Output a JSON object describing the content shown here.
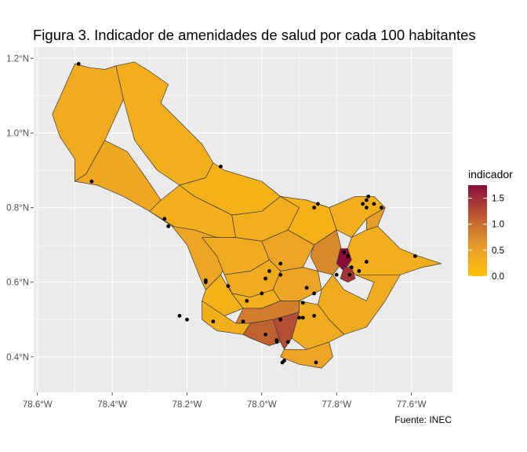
{
  "title": "Figura 3. Indicador de amenidades de salud por cada 100 habitantes",
  "caption": "Fuente: INEC",
  "colors": {
    "panel": "#EBEBEB",
    "grid": "#FFFFFF",
    "low": "#FFC107",
    "mid": "#E9A02A",
    "high": "#8A0C3D",
    "border": "#3a3a3a",
    "point": "#000000"
  },
  "axes": {
    "x_ticks": [
      "78.6°W",
      "78.4°W",
      "78.2°W",
      "78.0°W",
      "77.8°W",
      "77.6°W"
    ],
    "x_values": [
      -78.6,
      -78.4,
      -78.2,
      -78.0,
      -77.8,
      -77.6
    ],
    "y_ticks": [
      "0.4°N",
      "0.6°N",
      "0.8°N",
      "1.0°N",
      "1.2°N"
    ],
    "y_values": [
      0.4,
      0.6,
      0.8,
      1.0,
      1.2
    ],
    "xlim": [
      -78.61,
      -77.49
    ],
    "ylim": [
      0.305,
      1.23
    ]
  },
  "legend": {
    "title": "indicador",
    "labels": [
      "1.5",
      "1.0",
      "0.5",
      "0.0"
    ],
    "values": [
      1.5,
      1.0,
      0.5,
      0.0
    ],
    "range": [
      0.0,
      1.75
    ]
  },
  "chart_data": {
    "type": "choropleth",
    "fill_variable": "indicador",
    "fill_range": [
      0.0,
      1.75
    ],
    "regions": [
      {
        "value": 0.35,
        "polygon": [
          [
            -78.5,
            1.185
          ],
          [
            -78.46,
            1.175
          ],
          [
            -78.42,
            1.17
          ],
          [
            -78.39,
            1.18
          ],
          [
            -78.37,
            1.09
          ],
          [
            -78.42,
            0.98
          ],
          [
            -78.47,
            0.89
          ],
          [
            -78.5,
            0.87
          ],
          [
            -78.5,
            0.93
          ],
          [
            -78.54,
            0.99
          ],
          [
            -78.56,
            1.05
          ]
        ]
      },
      {
        "value": 0.3,
        "polygon": [
          [
            -78.39,
            1.18
          ],
          [
            -78.34,
            1.19
          ],
          [
            -78.3,
            1.165
          ],
          [
            -78.25,
            1.13
          ],
          [
            -78.27,
            1.08
          ],
          [
            -78.22,
            1.03
          ],
          [
            -78.16,
            0.97
          ],
          [
            -78.13,
            0.92
          ],
          [
            -78.15,
            0.88
          ],
          [
            -78.22,
            0.86
          ],
          [
            -78.28,
            0.9
          ],
          [
            -78.34,
            0.98
          ],
          [
            -78.37,
            1.09
          ]
        ]
      },
      {
        "value": 0.4,
        "polygon": [
          [
            -78.5,
            0.87
          ],
          [
            -78.47,
            0.89
          ],
          [
            -78.42,
            0.98
          ],
          [
            -78.36,
            0.95
          ],
          [
            -78.31,
            0.88
          ],
          [
            -78.27,
            0.82
          ],
          [
            -78.22,
            0.78
          ],
          [
            -78.18,
            0.74
          ],
          [
            -78.24,
            0.75
          ],
          [
            -78.3,
            0.79
          ],
          [
            -78.37,
            0.83
          ],
          [
            -78.44,
            0.86
          ]
        ]
      },
      {
        "value": 0.25,
        "polygon": [
          [
            -78.22,
            0.86
          ],
          [
            -78.15,
            0.88
          ],
          [
            -78.13,
            0.92
          ],
          [
            -78.1,
            0.9
          ],
          [
            -78.0,
            0.87
          ],
          [
            -77.95,
            0.83
          ],
          [
            -78.0,
            0.79
          ],
          [
            -78.08,
            0.78
          ],
          [
            -78.12,
            0.8
          ],
          [
            -78.18,
            0.83
          ]
        ]
      },
      {
        "value": 0.3,
        "polygon": [
          [
            -78.3,
            0.79
          ],
          [
            -78.27,
            0.82
          ],
          [
            -78.22,
            0.86
          ],
          [
            -78.18,
            0.83
          ],
          [
            -78.12,
            0.8
          ],
          [
            -78.08,
            0.78
          ],
          [
            -78.07,
            0.72
          ],
          [
            -78.16,
            0.72
          ],
          [
            -78.22,
            0.74
          ]
        ]
      },
      {
        "value": 0.45,
        "polygon": [
          [
            -78.24,
            0.75
          ],
          [
            -78.18,
            0.74
          ],
          [
            -78.12,
            0.72
          ],
          [
            -78.08,
            0.68
          ],
          [
            -78.11,
            0.62
          ],
          [
            -78.15,
            0.58
          ],
          [
            -78.16,
            0.6
          ],
          [
            -78.18,
            0.65
          ],
          [
            -78.2,
            0.7
          ]
        ]
      },
      {
        "value": 0.3,
        "polygon": [
          [
            -78.08,
            0.78
          ],
          [
            -78.0,
            0.79
          ],
          [
            -77.95,
            0.83
          ],
          [
            -77.9,
            0.8
          ],
          [
            -77.93,
            0.74
          ],
          [
            -78.0,
            0.71
          ],
          [
            -78.07,
            0.72
          ]
        ]
      },
      {
        "value": 0.25,
        "polygon": [
          [
            -77.95,
            0.83
          ],
          [
            -77.88,
            0.82
          ],
          [
            -77.82,
            0.8
          ],
          [
            -77.8,
            0.74
          ],
          [
            -77.86,
            0.7
          ],
          [
            -77.93,
            0.74
          ],
          [
            -77.9,
            0.8
          ]
        ]
      },
      {
        "value": 0.3,
        "polygon": [
          [
            -77.82,
            0.8
          ],
          [
            -77.75,
            0.83
          ],
          [
            -77.7,
            0.83
          ],
          [
            -77.67,
            0.8
          ],
          [
            -77.72,
            0.77
          ],
          [
            -77.76,
            0.72
          ],
          [
            -77.8,
            0.74
          ]
        ]
      },
      {
        "value": 0.55,
        "polygon": [
          [
            -77.72,
            0.77
          ],
          [
            -77.67,
            0.8
          ],
          [
            -77.69,
            0.75
          ],
          [
            -77.72,
            0.74
          ]
        ]
      },
      {
        "value": 0.3,
        "polygon": [
          [
            -77.76,
            0.72
          ],
          [
            -77.72,
            0.74
          ],
          [
            -77.69,
            0.75
          ],
          [
            -77.63,
            0.69
          ],
          [
            -77.58,
            0.67
          ],
          [
            -77.52,
            0.65
          ],
          [
            -77.57,
            0.64
          ],
          [
            -77.63,
            0.62
          ],
          [
            -77.7,
            0.6
          ],
          [
            -77.75,
            0.62
          ],
          [
            -77.78,
            0.66
          ]
        ]
      },
      {
        "value": 0.35,
        "polygon": [
          [
            -78.16,
            0.72
          ],
          [
            -78.07,
            0.72
          ],
          [
            -78.0,
            0.71
          ],
          [
            -77.98,
            0.66
          ],
          [
            -78.03,
            0.63
          ],
          [
            -78.1,
            0.62
          ],
          [
            -78.12,
            0.67
          ]
        ]
      },
      {
        "value": 0.45,
        "polygon": [
          [
            -78.0,
            0.71
          ],
          [
            -77.93,
            0.74
          ],
          [
            -77.86,
            0.7
          ],
          [
            -77.89,
            0.64
          ],
          [
            -77.95,
            0.63
          ],
          [
            -77.98,
            0.66
          ]
        ]
      },
      {
        "value": 0.75,
        "polygon": [
          [
            -77.86,
            0.7
          ],
          [
            -77.8,
            0.74
          ],
          [
            -77.78,
            0.66
          ],
          [
            -77.81,
            0.62
          ],
          [
            -77.85,
            0.63
          ],
          [
            -77.87,
            0.67
          ]
        ]
      },
      {
        "value": 1.75,
        "polygon": [
          [
            -77.79,
            0.69
          ],
          [
            -77.77,
            0.69
          ],
          [
            -77.76,
            0.66
          ],
          [
            -77.78,
            0.63
          ],
          [
            -77.8,
            0.65
          ]
        ]
      },
      {
        "value": 1.45,
        "polygon": [
          [
            -77.78,
            0.64
          ],
          [
            -77.76,
            0.64
          ],
          [
            -77.75,
            0.61
          ],
          [
            -77.77,
            0.6
          ],
          [
            -77.79,
            0.61
          ]
        ]
      },
      {
        "value": 0.35,
        "polygon": [
          [
            -78.1,
            0.62
          ],
          [
            -78.03,
            0.63
          ],
          [
            -77.98,
            0.66
          ],
          [
            -77.95,
            0.63
          ],
          [
            -77.97,
            0.58
          ],
          [
            -78.03,
            0.56
          ],
          [
            -78.08,
            0.57
          ]
        ]
      },
      {
        "value": 0.45,
        "polygon": [
          [
            -77.97,
            0.58
          ],
          [
            -77.95,
            0.63
          ],
          [
            -77.89,
            0.64
          ],
          [
            -77.85,
            0.63
          ],
          [
            -77.84,
            0.58
          ],
          [
            -77.9,
            0.55
          ],
          [
            -77.95,
            0.55
          ]
        ]
      },
      {
        "value": 0.35,
        "polygon": [
          [
            -77.84,
            0.58
          ],
          [
            -77.81,
            0.62
          ],
          [
            -77.78,
            0.58
          ],
          [
            -77.72,
            0.55
          ],
          [
            -77.7,
            0.6
          ],
          [
            -77.75,
            0.62
          ],
          [
            -77.63,
            0.62
          ],
          [
            -77.67,
            0.55
          ],
          [
            -77.72,
            0.48
          ],
          [
            -77.78,
            0.46
          ],
          [
            -77.82,
            0.5
          ],
          [
            -77.85,
            0.54
          ]
        ]
      },
      {
        "value": 0.25,
        "polygon": [
          [
            -78.15,
            0.58
          ],
          [
            -78.11,
            0.62
          ],
          [
            -78.08,
            0.57
          ],
          [
            -78.05,
            0.53
          ],
          [
            -78.1,
            0.51
          ],
          [
            -78.16,
            0.55
          ]
        ]
      },
      {
        "value": 0.3,
        "polygon": [
          [
            -78.08,
            0.57
          ],
          [
            -78.03,
            0.56
          ],
          [
            -77.97,
            0.58
          ],
          [
            -77.95,
            0.55
          ],
          [
            -78.0,
            0.53
          ],
          [
            -78.05,
            0.53
          ]
        ]
      },
      {
        "value": 0.85,
        "polygon": [
          [
            -78.05,
            0.53
          ],
          [
            -78.0,
            0.53
          ],
          [
            -77.95,
            0.55
          ],
          [
            -77.9,
            0.55
          ],
          [
            -77.9,
            0.52
          ],
          [
            -77.97,
            0.5
          ],
          [
            -78.03,
            0.49
          ],
          [
            -78.07,
            0.49
          ]
        ]
      },
      {
        "value": 0.3,
        "polygon": [
          [
            -78.16,
            0.55
          ],
          [
            -78.1,
            0.51
          ],
          [
            -78.07,
            0.49
          ],
          [
            -78.03,
            0.49
          ],
          [
            -78.05,
            0.46
          ],
          [
            -78.12,
            0.47
          ],
          [
            -78.16,
            0.5
          ]
        ]
      },
      {
        "value": 1.1,
        "polygon": [
          [
            -78.03,
            0.49
          ],
          [
            -77.97,
            0.5
          ],
          [
            -77.95,
            0.44
          ],
          [
            -77.98,
            0.43
          ],
          [
            -78.03,
            0.45
          ],
          [
            -78.05,
            0.46
          ]
        ]
      },
      {
        "value": 1.25,
        "polygon": [
          [
            -77.97,
            0.5
          ],
          [
            -77.9,
            0.52
          ],
          [
            -77.92,
            0.45
          ],
          [
            -77.94,
            0.42
          ],
          [
            -77.95,
            0.44
          ]
        ]
      },
      {
        "value": 0.35,
        "polygon": [
          [
            -77.9,
            0.52
          ],
          [
            -77.9,
            0.55
          ],
          [
            -77.85,
            0.54
          ],
          [
            -77.82,
            0.5
          ],
          [
            -77.78,
            0.46
          ],
          [
            -77.82,
            0.44
          ],
          [
            -77.88,
            0.42
          ],
          [
            -77.92,
            0.45
          ]
        ]
      },
      {
        "value": 0.45,
        "polygon": [
          [
            -77.94,
            0.42
          ],
          [
            -77.88,
            0.42
          ],
          [
            -77.82,
            0.44
          ],
          [
            -77.81,
            0.4
          ],
          [
            -77.84,
            0.37
          ],
          [
            -77.9,
            0.38
          ],
          [
            -77.95,
            0.4
          ]
        ]
      }
    ],
    "points": [
      {
        "lon": -78.49,
        "lat": 1.185
      },
      {
        "lon": -78.11,
        "lat": 0.91
      },
      {
        "lon": -78.455,
        "lat": 0.87
      },
      {
        "lon": -78.26,
        "lat": 0.77
      },
      {
        "lon": -78.25,
        "lat": 0.75
      },
      {
        "lon": -77.86,
        "lat": 0.8
      },
      {
        "lon": -77.85,
        "lat": 0.81
      },
      {
        "lon": -77.73,
        "lat": 0.81
      },
      {
        "lon": -77.72,
        "lat": 0.82
      },
      {
        "lon": -77.715,
        "lat": 0.83
      },
      {
        "lon": -77.72,
        "lat": 0.8
      },
      {
        "lon": -77.7,
        "lat": 0.81
      },
      {
        "lon": -77.68,
        "lat": 0.8
      },
      {
        "lon": -77.59,
        "lat": 0.67
      },
      {
        "lon": -77.77,
        "lat": 0.67
      },
      {
        "lon": -77.78,
        "lat": 0.68
      },
      {
        "lon": -77.76,
        "lat": 0.64
      },
      {
        "lon": -77.72,
        "lat": 0.655
      },
      {
        "lon": -77.74,
        "lat": 0.63
      },
      {
        "lon": -77.765,
        "lat": 0.62
      },
      {
        "lon": -77.8,
        "lat": 0.62
      },
      {
        "lon": -77.95,
        "lat": 0.65
      },
      {
        "lon": -77.98,
        "lat": 0.63
      },
      {
        "lon": -77.95,
        "lat": 0.62
      },
      {
        "lon": -77.99,
        "lat": 0.61
      },
      {
        "lon": -77.88,
        "lat": 0.585
      },
      {
        "lon": -77.86,
        "lat": 0.57
      },
      {
        "lon": -78.15,
        "lat": 0.605
      },
      {
        "lon": -78.15,
        "lat": 0.6
      },
      {
        "lon": -78.09,
        "lat": 0.59
      },
      {
        "lon": -78.0,
        "lat": 0.57
      },
      {
        "lon": -78.04,
        "lat": 0.55
      },
      {
        "lon": -77.89,
        "lat": 0.545
      },
      {
        "lon": -78.22,
        "lat": 0.51
      },
      {
        "lon": -78.2,
        "lat": 0.5
      },
      {
        "lon": -78.13,
        "lat": 0.495
      },
      {
        "lon": -78.05,
        "lat": 0.495
      },
      {
        "lon": -77.95,
        "lat": 0.5
      },
      {
        "lon": -77.9,
        "lat": 0.505
      },
      {
        "lon": -77.89,
        "lat": 0.505
      },
      {
        "lon": -77.86,
        "lat": 0.51
      },
      {
        "lon": -77.99,
        "lat": 0.46
      },
      {
        "lon": -77.96,
        "lat": 0.44
      },
      {
        "lon": -77.96,
        "lat": 0.445
      },
      {
        "lon": -77.93,
        "lat": 0.44
      },
      {
        "lon": -77.94,
        "lat": 0.39
      },
      {
        "lon": -77.945,
        "lat": 0.385
      },
      {
        "lon": -77.855,
        "lat": 0.385
      }
    ]
  }
}
